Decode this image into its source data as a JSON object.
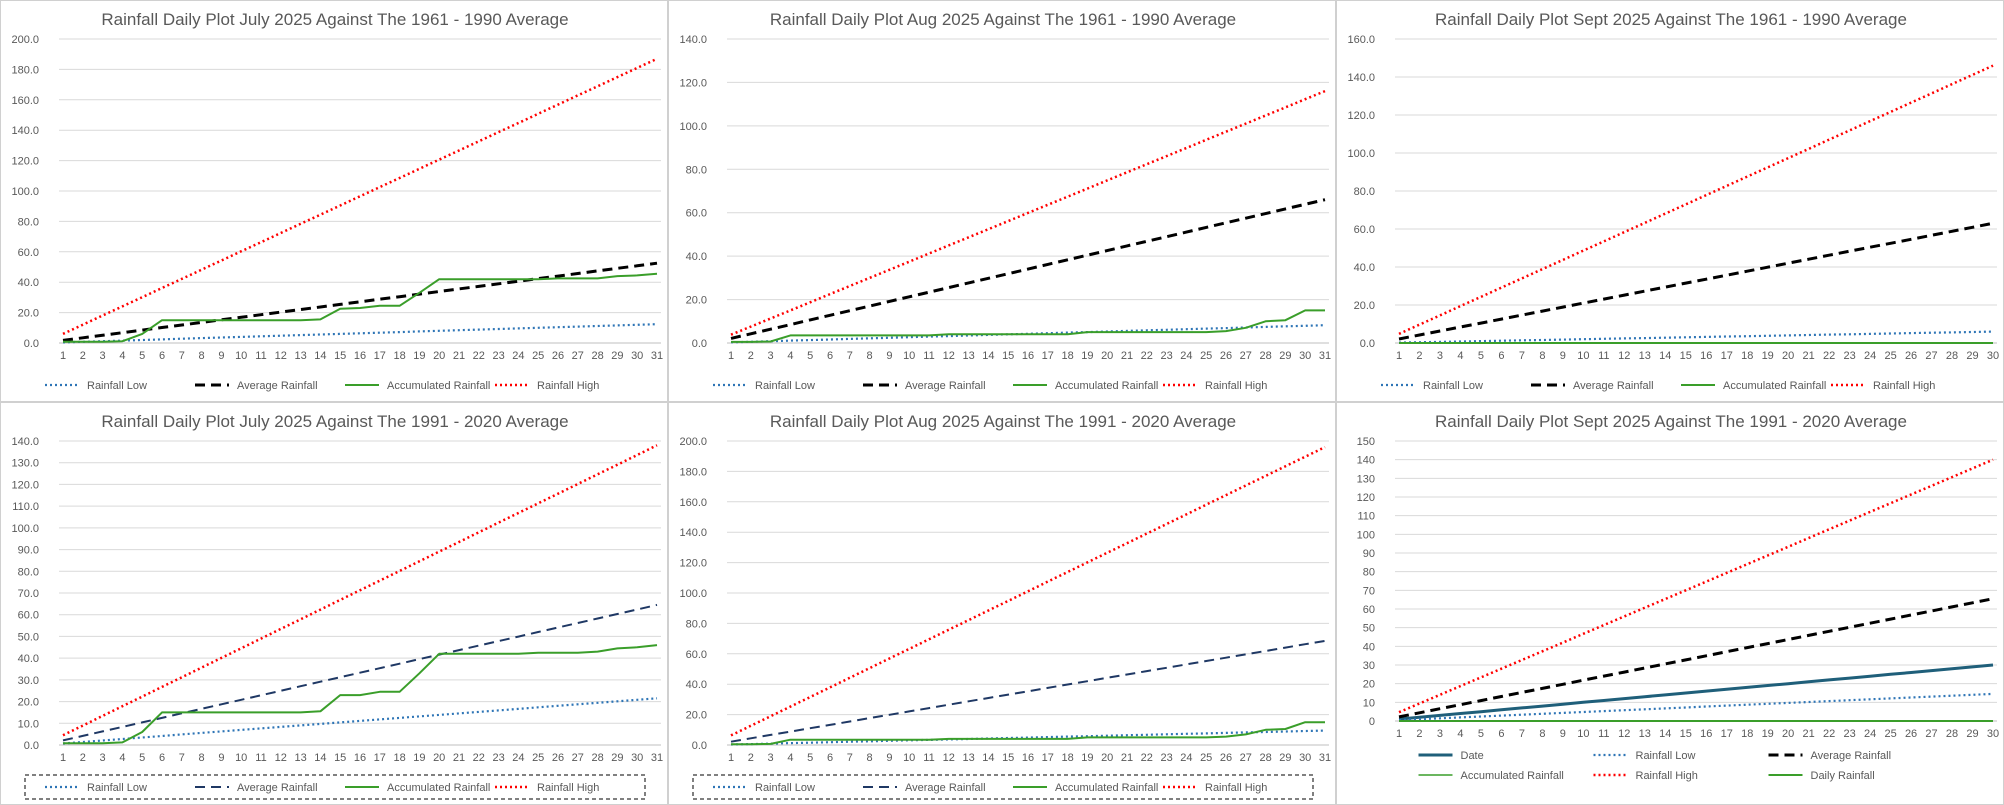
{
  "charts": [
    {
      "title": "Rainfall Daily Plot July 2025 Against The 1961 - 1990 Average",
      "chart_data": {
        "type": "line",
        "title": "Rainfall Daily Plot July 2025 Against The 1961 - 1990 Average",
        "x": [
          1,
          2,
          3,
          4,
          5,
          6,
          7,
          8,
          9,
          10,
          11,
          12,
          13,
          14,
          15,
          16,
          17,
          18,
          19,
          20,
          21,
          22,
          23,
          24,
          25,
          26,
          27,
          28,
          29,
          30,
          31
        ],
        "ylim": [
          0,
          200
        ],
        "ystep": 20,
        "ydecimals": 1,
        "grid": true,
        "legend": "bottom",
        "series": [
          {
            "name": "Rainfall Low",
            "color": "#2e75b6",
            "style": "dotted",
            "width": 2.2,
            "start": 0.4,
            "end": 12.4
          },
          {
            "name": "Average Rainfall",
            "color": "#000000",
            "style": "dashed",
            "width": 3,
            "start": 1.7,
            "end": 52.5
          },
          {
            "name": "Accumulated Rainfall",
            "color": "#3a9e2a",
            "style": "solid",
            "width": 2,
            "values": [
              0.8,
              0.8,
              0.8,
              1.2,
              6,
              15,
              15,
              15,
              15,
              15,
              15,
              15,
              15,
              15.5,
              22.5,
              23,
              24.5,
              24.5,
              33,
              42,
              42,
              42,
              42,
              42,
              42,
              42.5,
              42.5,
              42.5,
              44,
              44.5,
              45.5
            ]
          },
          {
            "name": "Rainfall High",
            "color": "#ff0000",
            "style": "dotted",
            "width": 2.5,
            "start": 6,
            "end": 187
          }
        ],
        "legend_rows": [
          [
            "Rainfall Low",
            "Average Rainfall",
            "Accumulated Rainfall",
            "Rainfall High"
          ]
        ]
      }
    },
    {
      "title": "Rainfall Daily Plot Aug 2025 Against The 1961 - 1990 Average",
      "chart_data": {
        "type": "line",
        "title": "Rainfall Daily Plot Aug 2025 Against The 1961 - 1990 Average",
        "x": [
          1,
          2,
          3,
          4,
          5,
          6,
          7,
          8,
          9,
          10,
          11,
          12,
          13,
          14,
          15,
          16,
          17,
          18,
          19,
          20,
          21,
          22,
          23,
          24,
          25,
          26,
          27,
          28,
          29,
          30,
          31
        ],
        "ylim": [
          0,
          140
        ],
        "ystep": 20,
        "ydecimals": 1,
        "grid": true,
        "legend": "bottom",
        "series": [
          {
            "name": "Rainfall Low",
            "color": "#2e75b6",
            "style": "dotted",
            "width": 2.2,
            "start": 0.3,
            "end": 8.2
          },
          {
            "name": "Average Rainfall",
            "color": "#000000",
            "style": "dashed",
            "width": 3,
            "start": 2.1,
            "end": 66
          },
          {
            "name": "Accumulated Rainfall",
            "color": "#3a9e2a",
            "style": "solid",
            "width": 2,
            "values": [
              0.5,
              0.5,
              0.7,
              3.5,
              3.5,
              3.5,
              3.5,
              3.5,
              3.5,
              3.5,
              3.5,
              4,
              4,
              4,
              4,
              4,
              4,
              4,
              5,
              5,
              5,
              5,
              5,
              5,
              5,
              5.5,
              7,
              10,
              10.5,
              15,
              15
            ]
          },
          {
            "name": "Rainfall High",
            "color": "#ff0000",
            "style": "dotted",
            "width": 2.5,
            "start": 3.8,
            "end": 116
          }
        ],
        "legend_rows": [
          [
            "Rainfall Low",
            "Average Rainfall",
            "Accumulated Rainfall",
            "Rainfall High"
          ]
        ]
      }
    },
    {
      "title": "Rainfall Daily Plot Sept 2025 Against The 1961 - 1990 Average",
      "chart_data": {
        "type": "line",
        "title": "Rainfall Daily Plot Sept 2025 Against The 1961 - 1990 Average",
        "x": [
          1,
          2,
          3,
          4,
          5,
          6,
          7,
          8,
          9,
          10,
          11,
          12,
          13,
          14,
          15,
          16,
          17,
          18,
          19,
          20,
          21,
          22,
          23,
          24,
          25,
          26,
          27,
          28,
          29,
          30
        ],
        "ylim": [
          0,
          160
        ],
        "ystep": 20,
        "ydecimals": 1,
        "grid": true,
        "legend": "bottom",
        "series": [
          {
            "name": "Rainfall Low",
            "color": "#2e75b6",
            "style": "dotted",
            "width": 2.2,
            "start": 0.2,
            "end": 6
          },
          {
            "name": "Average Rainfall",
            "color": "#000000",
            "style": "dashed",
            "width": 3,
            "start": 2.1,
            "end": 63
          },
          {
            "name": "Accumulated Rainfall",
            "color": "#3a9e2a",
            "style": "solid",
            "width": 2,
            "values": [
              0,
              0,
              0,
              0,
              0,
              0,
              0,
              0,
              0,
              0,
              0,
              0,
              0,
              0,
              0,
              0,
              0,
              0,
              0,
              0,
              0,
              0,
              0,
              0,
              0,
              0,
              0,
              0,
              0,
              0
            ]
          },
          {
            "name": "Rainfall High",
            "color": "#ff0000",
            "style": "dotted",
            "width": 2.5,
            "start": 4.8,
            "end": 146
          }
        ],
        "legend_rows": [
          [
            "Rainfall Low",
            "Average Rainfall",
            "Accumulated Rainfall",
            "Rainfall High"
          ]
        ]
      }
    },
    {
      "title": "Rainfall Daily Plot July 2025 Against The 1991 - 2020 Average",
      "chart_data": {
        "type": "line",
        "title": "Rainfall Daily Plot July 2025 Against The 1991 - 2020 Average",
        "x": [
          1,
          2,
          3,
          4,
          5,
          6,
          7,
          8,
          9,
          10,
          11,
          12,
          13,
          14,
          15,
          16,
          17,
          18,
          19,
          20,
          21,
          22,
          23,
          24,
          25,
          26,
          27,
          28,
          29,
          30,
          31
        ],
        "ylim": [
          0,
          140
        ],
        "ystep": 10,
        "ydecimals": 1,
        "grid": true,
        "legend": "bottom",
        "legend_box": true,
        "series": [
          {
            "name": "Rainfall Low",
            "color": "#2e75b6",
            "style": "dotted",
            "width": 2.2,
            "start": 0.7,
            "end": 21.5
          },
          {
            "name": "Average Rainfall",
            "color": "#1f3864",
            "style": "dashed",
            "width": 2,
            "start": 2.1,
            "end": 64.5
          },
          {
            "name": "Accumulated Rainfall",
            "color": "#3a9e2a",
            "style": "solid",
            "width": 2,
            "values": [
              0.8,
              0.8,
              0.8,
              1.2,
              6,
              15,
              15,
              15,
              15,
              15,
              15,
              15,
              15,
              15.5,
              23,
              23,
              24.5,
              24.5,
              33,
              42,
              42,
              42,
              42,
              42,
              42.5,
              42.5,
              42.5,
              43,
              44.5,
              45,
              46
            ]
          },
          {
            "name": "Rainfall High",
            "color": "#ff0000",
            "style": "dotted",
            "width": 2.5,
            "start": 4.5,
            "end": 138
          }
        ],
        "legend_rows": [
          [
            "Rainfall Low",
            "Average Rainfall",
            "Accumulated Rainfall",
            "Rainfall High"
          ]
        ]
      }
    },
    {
      "title": "Rainfall Daily Plot Aug 2025 Against The 1991 - 2020 Average",
      "chart_data": {
        "type": "line",
        "title": "Rainfall Daily Plot Aug 2025 Against The 1991 - 2020 Average",
        "x": [
          1,
          2,
          3,
          4,
          5,
          6,
          7,
          8,
          9,
          10,
          11,
          12,
          13,
          14,
          15,
          16,
          17,
          18,
          19,
          20,
          21,
          22,
          23,
          24,
          25,
          26,
          27,
          28,
          29,
          30,
          31
        ],
        "ylim": [
          0,
          200
        ],
        "ystep": 20,
        "ydecimals": 1,
        "grid": true,
        "legend": "bottom",
        "legend_box": true,
        "series": [
          {
            "name": "Rainfall Low",
            "color": "#2e75b6",
            "style": "dotted",
            "width": 2.2,
            "start": 0.3,
            "end": 9.5
          },
          {
            "name": "Average Rainfall",
            "color": "#1f3864",
            "style": "dashed",
            "width": 2,
            "start": 2.2,
            "end": 68.5
          },
          {
            "name": "Accumulated Rainfall",
            "color": "#3a9e2a",
            "style": "solid",
            "width": 2,
            "values": [
              0.5,
              0.5,
              0.7,
              3.5,
              3.5,
              3.5,
              3.5,
              3.5,
              3.5,
              3.5,
              3.5,
              4,
              4,
              4,
              4,
              4,
              4,
              4,
              5,
              5,
              5,
              5,
              5,
              5,
              5,
              5.5,
              7,
              10,
              10.5,
              15,
              15
            ]
          },
          {
            "name": "Rainfall High",
            "color": "#ff0000",
            "style": "dotted",
            "width": 2.5,
            "start": 6.3,
            "end": 196
          }
        ],
        "legend_rows": [
          [
            "Rainfall Low",
            "Average Rainfall",
            "Accumulated Rainfall",
            "Rainfall High"
          ]
        ]
      }
    },
    {
      "title": "Rainfall Daily Plot Sept 2025 Against The 1991 - 2020 Average",
      "chart_data": {
        "type": "line",
        "title": "Rainfall Daily Plot Sept 2025 Against The 1991 - 2020 Average",
        "x": [
          1,
          2,
          3,
          4,
          5,
          6,
          7,
          8,
          9,
          10,
          11,
          12,
          13,
          14,
          15,
          16,
          17,
          18,
          19,
          20,
          21,
          22,
          23,
          24,
          25,
          26,
          27,
          28,
          29,
          30
        ],
        "ylim": [
          0,
          150
        ],
        "ystep": 10,
        "ydecimals": 0,
        "grid": true,
        "legend": "bottom",
        "series": [
          {
            "name": "Date",
            "color": "#1f5f7a",
            "style": "solid",
            "width": 3,
            "start": 1,
            "end": 30
          },
          {
            "name": "Rainfall Low",
            "color": "#2e75b6",
            "style": "dotted",
            "width": 2.2,
            "start": 0.5,
            "end": 14.5
          },
          {
            "name": "Average Rainfall",
            "color": "#000000",
            "style": "dashed",
            "width": 3,
            "start": 2.2,
            "end": 65.5
          },
          {
            "name": "Accumulated Rainfall",
            "color": "#3a9e2a",
            "style": "solid",
            "width": 1.5,
            "start": 0,
            "end": 0
          },
          {
            "name": "Rainfall High",
            "color": "#ff0000",
            "style": "dotted",
            "width": 2.5,
            "start": 4.7,
            "end": 140
          },
          {
            "name": "Daily Rainfall",
            "color": "#3a9e2a",
            "style": "solid",
            "width": 2,
            "start": 0,
            "end": 0
          }
        ],
        "legend_rows": [
          [
            "Date",
            "Rainfall Low",
            "Average Rainfall"
          ],
          [
            "Accumulated Rainfall",
            "Rainfall High",
            "Daily Rainfall"
          ]
        ]
      }
    }
  ]
}
